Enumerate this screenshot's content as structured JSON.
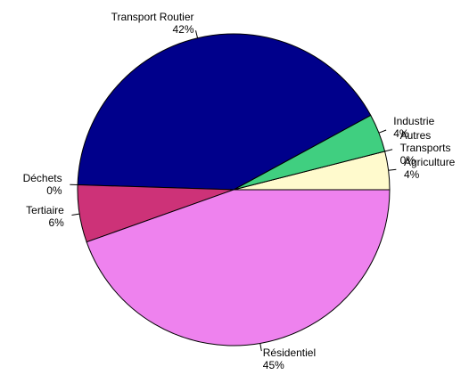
{
  "chart_data": {
    "type": "pie",
    "categories": [
      "Agriculture",
      "Autres\nTransports",
      "Industrie",
      "Transport Routier",
      "Déchets",
      "Tertiaire",
      "Résidentiel"
    ],
    "values": [
      4,
      0,
      4,
      42,
      0,
      6,
      45
    ],
    "value_labels": [
      "4%",
      "0%",
      "4%",
      "42%",
      "0%",
      "6%",
      "45%"
    ],
    "colors": [
      "#fffacd",
      "#66cdaa",
      "#40cf80",
      "#00008b",
      "#8b0000",
      "#cd3278",
      "#ee82ee"
    ]
  }
}
